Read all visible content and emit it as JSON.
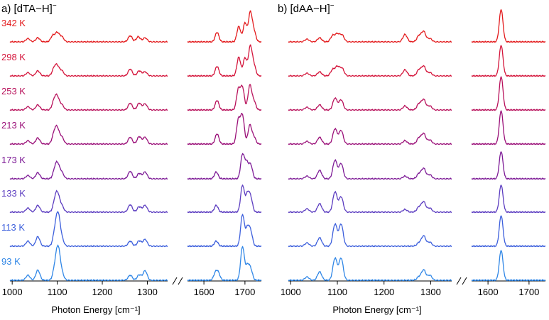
{
  "chart_data": {
    "type": "line",
    "xlabel": "Photon Energy [cm⁻¹]",
    "series_colors": {
      "342 K": "#e31a1c",
      "298 K": "#d4143a",
      "253 K": "#b8105a",
      "213 K": "#9a0f78",
      "173 K": "#7d1a96",
      "133 K": "#5b3cc0",
      "113 K": "#3c5fdc",
      "93 K": "#2f86e6"
    },
    "temperatures": [
      "342 K",
      "298 K",
      "253 K",
      "213 K",
      "173 K",
      "133 K",
      "113 K",
      "93 K"
    ],
    "panels": [
      {
        "label": "a)",
        "ion": "[dTA−H]",
        "charge": "−",
        "segments": [
          {
            "range": [
              995,
              1345
            ],
            "ticks": [
              1000,
              1100,
              1200,
              1300
            ]
          },
          {
            "range": [
              1560,
              1740
            ],
            "ticks": [
              1600,
              1700
            ]
          }
        ],
        "peaks": {
          "342 K": [
            [
              1035,
              0.1
            ],
            [
              1057,
              0.12
            ],
            [
              1090,
              0.18
            ],
            [
              1100,
              0.26
            ],
            [
              1110,
              0.15
            ],
            [
              1262,
              0.18
            ],
            [
              1280,
              0.15
            ],
            [
              1295,
              0.12
            ],
            [
              1632,
              0.28
            ],
            [
              1685,
              0.45
            ],
            [
              1700,
              0.55
            ],
            [
              1713,
              0.85
            ],
            [
              1722,
              0.3
            ]
          ],
          "298 K": [
            [
              1035,
              0.1
            ],
            [
              1057,
              0.15
            ],
            [
              1093,
              0.2
            ],
            [
              1100,
              0.26
            ],
            [
              1110,
              0.15
            ],
            [
              1262,
              0.2
            ],
            [
              1282,
              0.15
            ],
            [
              1295,
              0.12
            ],
            [
              1632,
              0.28
            ],
            [
              1685,
              0.55
            ],
            [
              1700,
              0.52
            ],
            [
              1713,
              0.85
            ],
            [
              1722,
              0.3
            ]
          ],
          "253 K": [
            [
              1035,
              0.1
            ],
            [
              1057,
              0.15
            ],
            [
              1093,
              0.25
            ],
            [
              1100,
              0.35
            ],
            [
              1110,
              0.15
            ],
            [
              1262,
              0.2
            ],
            [
              1282,
              0.2
            ],
            [
              1295,
              0.18
            ],
            [
              1632,
              0.28
            ],
            [
              1684,
              0.6
            ],
            [
              1694,
              0.65
            ],
            [
              1712,
              0.72
            ],
            [
              1722,
              0.25
            ]
          ],
          "213 K": [
            [
              1035,
              0.1
            ],
            [
              1057,
              0.18
            ],
            [
              1093,
              0.28
            ],
            [
              1100,
              0.42
            ],
            [
              1110,
              0.2
            ],
            [
              1262,
              0.2
            ],
            [
              1282,
              0.22
            ],
            [
              1295,
              0.2
            ],
            [
              1632,
              0.3
            ],
            [
              1684,
              0.7
            ],
            [
              1694,
              0.82
            ],
            [
              1712,
              0.55
            ],
            [
              1722,
              0.2
            ]
          ],
          "173 K": [
            [
              1035,
              0.1
            ],
            [
              1057,
              0.18
            ],
            [
              1095,
              0.25
            ],
            [
              1101,
              0.36
            ],
            [
              1110,
              0.18
            ],
            [
              1262,
              0.22
            ],
            [
              1282,
              0.16
            ],
            [
              1295,
              0.2
            ],
            [
              1630,
              0.2
            ],
            [
              1694,
              0.7
            ],
            [
              1704,
              0.45
            ],
            [
              1714,
              0.4
            ]
          ],
          "133 K": [
            [
              1035,
              0.12
            ],
            [
              1057,
              0.2
            ],
            [
              1095,
              0.3
            ],
            [
              1101,
              0.45
            ],
            [
              1110,
              0.18
            ],
            [
              1262,
              0.22
            ],
            [
              1282,
              0.16
            ],
            [
              1295,
              0.2
            ],
            [
              1630,
              0.2
            ],
            [
              1694,
              0.78
            ],
            [
              1706,
              0.5
            ],
            [
              1714,
              0.4
            ]
          ],
          "113 K": [
            [
              1035,
              0.15
            ],
            [
              1057,
              0.28
            ],
            [
              1095,
              0.4
            ],
            [
              1102,
              0.85
            ],
            [
              1110,
              0.2
            ],
            [
              1262,
              0.15
            ],
            [
              1282,
              0.16
            ],
            [
              1295,
              0.2
            ],
            [
              1630,
              0.15
            ],
            [
              1694,
              0.92
            ],
            [
              1706,
              0.5
            ],
            [
              1714,
              0.4
            ]
          ],
          "93 K": [
            [
              1035,
              0.15
            ],
            [
              1057,
              0.3
            ],
            [
              1095,
              0.35
            ],
            [
              1102,
              0.88
            ],
            [
              1110,
              0.2
            ],
            [
              1262,
              0.15
            ],
            [
              1282,
              0.16
            ],
            [
              1295,
              0.28
            ],
            [
              1628,
              0.2
            ],
            [
              1635,
              0.2
            ],
            [
              1694,
              0.98
            ],
            [
              1706,
              0.4
            ],
            [
              1714,
              0.3
            ]
          ]
        }
      },
      {
        "label": "b)",
        "ion": "[dAA−H]",
        "charge": "−",
        "segments": [
          {
            "range": [
              995,
              1345
            ],
            "ticks": [
              1000,
              1100,
              1200,
              1300
            ]
          },
          {
            "range": [
              1560,
              1740
            ],
            "ticks": [
              1600,
              1700
            ]
          }
        ],
        "peaks": {
          "342 K": [
            [
              1035,
              0.08
            ],
            [
              1062,
              0.12
            ],
            [
              1090,
              0.18
            ],
            [
              1100,
              0.22
            ],
            [
              1110,
              0.2
            ],
            [
              1245,
              0.22
            ],
            [
              1275,
              0.18
            ],
            [
              1285,
              0.3
            ],
            [
              1298,
              0.1
            ],
            [
              1632,
              0.95
            ]
          ],
          "298 K": [
            [
              1035,
              0.08
            ],
            [
              1062,
              0.12
            ],
            [
              1090,
              0.18
            ],
            [
              1100,
              0.26
            ],
            [
              1110,
              0.22
            ],
            [
              1245,
              0.18
            ],
            [
              1275,
              0.18
            ],
            [
              1285,
              0.28
            ],
            [
              1298,
              0.1
            ],
            [
              1632,
              0.9
            ]
          ],
          "253 K": [
            [
              1035,
              0.08
            ],
            [
              1062,
              0.15
            ],
            [
              1095,
              0.35
            ],
            [
              1108,
              0.3
            ],
            [
              1245,
              0.12
            ],
            [
              1275,
              0.18
            ],
            [
              1285,
              0.3
            ],
            [
              1298,
              0.12
            ],
            [
              1632,
              0.98
            ]
          ],
          "213 K": [
            [
              1035,
              0.08
            ],
            [
              1062,
              0.2
            ],
            [
              1095,
              0.45
            ],
            [
              1108,
              0.4
            ],
            [
              1245,
              0.1
            ],
            [
              1275,
              0.18
            ],
            [
              1285,
              0.3
            ],
            [
              1298,
              0.12
            ],
            [
              1632,
              0.98
            ]
          ],
          "173 K": [
            [
              1035,
              0.08
            ],
            [
              1062,
              0.25
            ],
            [
              1095,
              0.55
            ],
            [
              1108,
              0.45
            ],
            [
              1245,
              0.08
            ],
            [
              1275,
              0.15
            ],
            [
              1285,
              0.3
            ],
            [
              1298,
              0.12
            ],
            [
              1632,
              0.8
            ]
          ],
          "133 K": [
            [
              1035,
              0.1
            ],
            [
              1062,
              0.25
            ],
            [
              1095,
              0.6
            ],
            [
              1108,
              0.45
            ],
            [
              1245,
              0.08
            ],
            [
              1275,
              0.15
            ],
            [
              1285,
              0.3
            ],
            [
              1298,
              0.12
            ],
            [
              1632,
              0.8
            ]
          ],
          "113 K": [
            [
              1035,
              0.1
            ],
            [
              1062,
              0.25
            ],
            [
              1095,
              0.65
            ],
            [
              1108,
              0.65
            ],
            [
              1275,
              0.1
            ],
            [
              1285,
              0.3
            ],
            [
              1298,
              0.12
            ],
            [
              1632,
              0.9
            ]
          ],
          "93 K": [
            [
              1035,
              0.1
            ],
            [
              1062,
              0.25
            ],
            [
              1095,
              0.65
            ],
            [
              1108,
              0.65
            ],
            [
              1275,
              0.1
            ],
            [
              1285,
              0.3
            ],
            [
              1298,
              0.15
            ],
            [
              1632,
              0.88
            ]
          ]
        }
      }
    ]
  }
}
